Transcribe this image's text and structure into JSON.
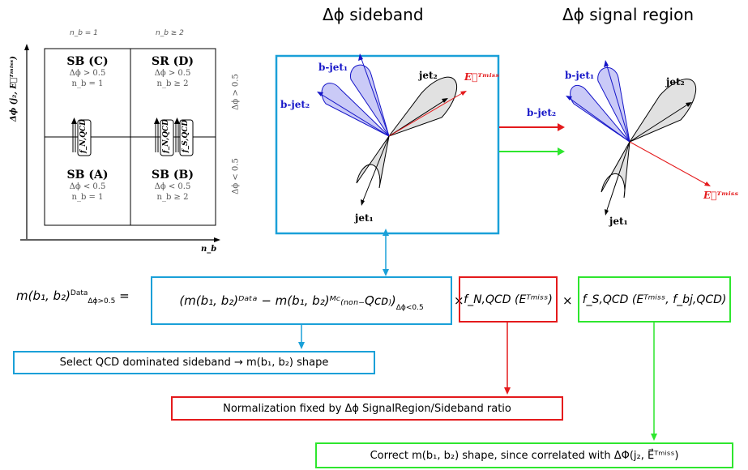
{
  "headers": {
    "sideband": "Δϕ sideband",
    "signal_region": "Δϕ signal region"
  },
  "abcd": {
    "col_labels": [
      "n_b = 1",
      "n_b ≥ 2"
    ],
    "row_labels": [
      "Δϕ > 0.5",
      "Δϕ < 0.5"
    ],
    "y_axis": "Δϕ (j₂, E⃗ᵀᵐⁱˢˢ)",
    "x_axis": "n_b",
    "cells": [
      {
        "title": "SB (C)",
        "cut": "Δϕ > 0.5",
        "nb": "n_b = 1"
      },
      {
        "title": "SR (D)",
        "cut": "Δϕ > 0.5",
        "nb": "n_b ≥ 2"
      },
      {
        "title": "SB (A)",
        "cut": "Δϕ < 0.5",
        "nb": "n_b = 1"
      },
      {
        "title": "SB (B)",
        "cut": "Δϕ < 0.5",
        "nb": "n_b ≥ 2"
      }
    ],
    "transfer_factors": [
      "f_N,QCD",
      "f_N,QCD",
      "f_S,QCD"
    ]
  },
  "event_labels": {
    "bjet1": "b-jet₁",
    "bjet2": "b-jet₂",
    "jet1": "jet₁",
    "jet2": "jet₂",
    "met": "E⃗ᵀᵐⁱˢˢ"
  },
  "equation": {
    "lhs": "m(b₁, b₂)",
    "lhs_super": "Data",
    "lhs_sub": "Δϕ>0.5",
    "equals": "=",
    "term1": "(m(b₁, b₂)ᴰᵃᵗᵃ − m(b₁, b₂)ᴹᶜ₍ₙₒₙ₋Qᴄᴅ₎)",
    "term1_sub": "Δϕ<0.5",
    "times": "×",
    "term2": "f_N,QCD (Eᵀᵐⁱˢˢ)",
    "term3": "f_S,QCD (Eᵀᵐⁱˢˢ, f_bj,QCD)"
  },
  "notes": {
    "cyan": "Select QCD dominated sideband → m(b₁, b₂) shape",
    "red": "Normalization fixed by Δϕ SignalRegion/Sideband ratio",
    "green": "Correct m(b₁, b₂) shape, since correlated with ΔΦ(j₂, E⃗ᵀᵐⁱˢˢ)"
  },
  "colors": {
    "cyan": "#1aa0d8",
    "red": "#e41a1c",
    "green": "#2ee62e",
    "blue": "#1515c8"
  }
}
